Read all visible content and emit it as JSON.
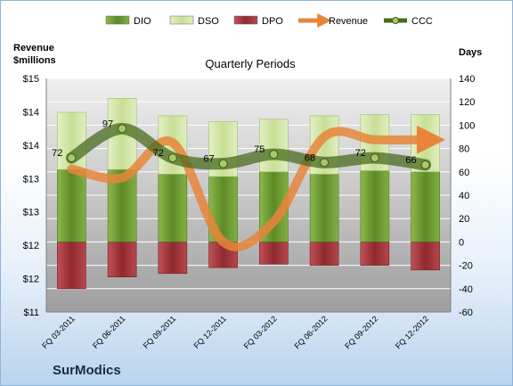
{
  "chart_data": {
    "type": "bar",
    "title": "Quarterly Periods",
    "brand": "SurModics",
    "left_axis": {
      "title_line1": "Revenue",
      "title_line2": "$millions",
      "ticks": [
        "$11",
        "$12",
        "$12",
        "$13",
        "$13",
        "$14",
        "$14",
        "$15"
      ],
      "range": [
        11,
        15
      ]
    },
    "right_axis": {
      "title": "Days",
      "ticks": [
        -60,
        -40,
        -20,
        0,
        20,
        40,
        60,
        80,
        100,
        120,
        140
      ],
      "range": [
        -60,
        140
      ]
    },
    "categories": [
      "FQ 03-2011",
      "FQ 06-2011",
      "FQ 09-2011",
      "FQ 12-2011",
      "FQ 03-2012",
      "FQ 06-2012",
      "FQ 09-2012",
      "FQ 12-2012"
    ],
    "series": [
      {
        "name": "DIO",
        "type": "stacked-bar",
        "axis": "right",
        "color": "#6f9a34",
        "values": [
          62,
          62,
          58,
          56,
          60,
          58,
          61,
          60
        ]
      },
      {
        "name": "DSO",
        "type": "stacked-bar",
        "axis": "right",
        "color": "#d9eab6",
        "values": [
          49,
          61,
          50,
          47,
          45,
          50,
          48,
          49
        ]
      },
      {
        "name": "DPO",
        "type": "stacked-bar",
        "axis": "right",
        "color": "#a8353a",
        "values": [
          -40,
          -30,
          -27,
          -22,
          -19,
          -20,
          -20,
          -24
        ]
      },
      {
        "name": "Revenue",
        "type": "line",
        "axis": "left",
        "color": "#e8853a",
        "values": [
          13.45,
          13.3,
          13.9,
          12.2,
          12.55,
          14.0,
          13.95,
          13.95
        ]
      },
      {
        "name": "CCC",
        "type": "line",
        "axis": "right",
        "color": "#4a6b1f",
        "values": [
          72,
          97,
          72,
          67,
          75,
          68,
          72,
          66
        ]
      }
    ],
    "ccc_labels": [
      "72",
      "97",
      "72",
      "67",
      "75",
      "68",
      "72",
      "66"
    ]
  }
}
